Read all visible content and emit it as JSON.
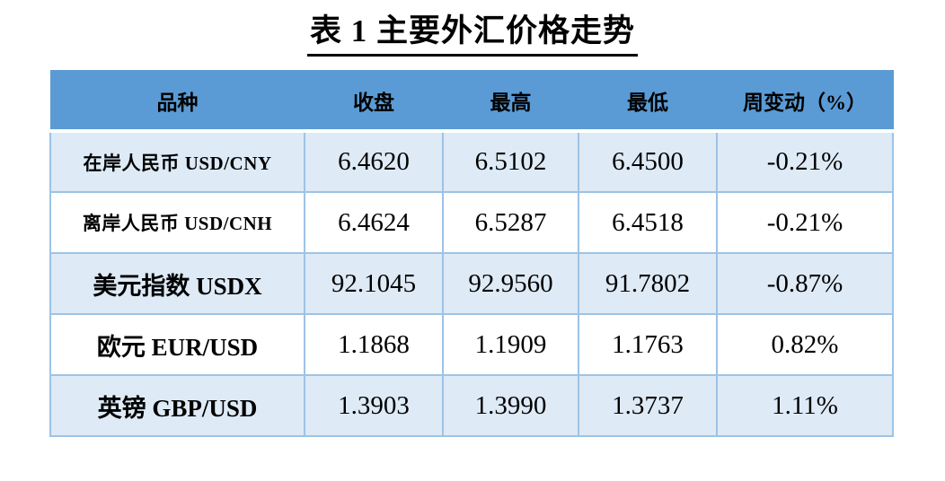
{
  "title": "表 1  主要外汇价格走势",
  "table": {
    "headers": [
      "品种",
      "收盘",
      "最高",
      "最低",
      "周变动（%）"
    ],
    "rows": [
      {
        "name": "在岸人民币 USD/CNY",
        "close": "6.4620",
        "high": "6.5102",
        "low": "6.4500",
        "change": "-0.21%"
      },
      {
        "name": "离岸人民币 USD/CNH",
        "close": "6.4624",
        "high": "6.5287",
        "low": "6.4518",
        "change": "-0.21%"
      },
      {
        "name": "美元指数 USDX",
        "close": "92.1045",
        "high": "92.9560",
        "low": "91.7802",
        "change": "-0.87%"
      },
      {
        "name": "欧元 EUR/USD",
        "close": "1.1868",
        "high": "1.1909",
        "low": "1.1763",
        "change": "0.82%"
      },
      {
        "name": "英镑 GBP/USD",
        "close": "1.3903",
        "high": "1.3990",
        "low": "1.3737",
        "change": "1.11%"
      }
    ]
  },
  "colors": {
    "header_bg": "#5B9BD5",
    "band_bg": "#DEEAF6",
    "border": "#9DC3E6",
    "text": "#000000"
  }
}
